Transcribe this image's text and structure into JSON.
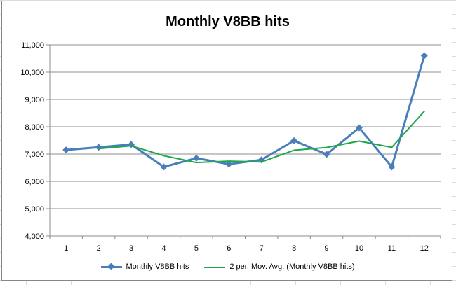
{
  "chart_data": {
    "type": "line",
    "title": "Monthly V8BB hits",
    "categories": [
      "1",
      "2",
      "3",
      "4",
      "5",
      "6",
      "7",
      "8",
      "9",
      "10",
      "11",
      "12"
    ],
    "ylim": [
      4000,
      11000
    ],
    "ytick_labels": [
      "4,000",
      "5,000",
      "6,000",
      "7,000",
      "8,000",
      "9,000",
      "10,000",
      "11,000"
    ],
    "grid": true,
    "legend_position": "bottom",
    "series": [
      {
        "name": "Monthly V8BB hits",
        "values": [
          7150,
          7250,
          7350,
          6530,
          6850,
          6630,
          6790,
          7490,
          6990,
          7960,
          6530,
          10600
        ],
        "color": "#4a7ebb",
        "marker": "diamond"
      },
      {
        "name": "2 per. Mov. Avg. (Monthly V8BB hits)",
        "values": [
          null,
          7200,
          7300,
          6940,
          6690,
          6740,
          6710,
          7140,
          7240,
          7475,
          7245,
          8565
        ],
        "color": "#1fa84a",
        "marker": "none"
      }
    ]
  }
}
